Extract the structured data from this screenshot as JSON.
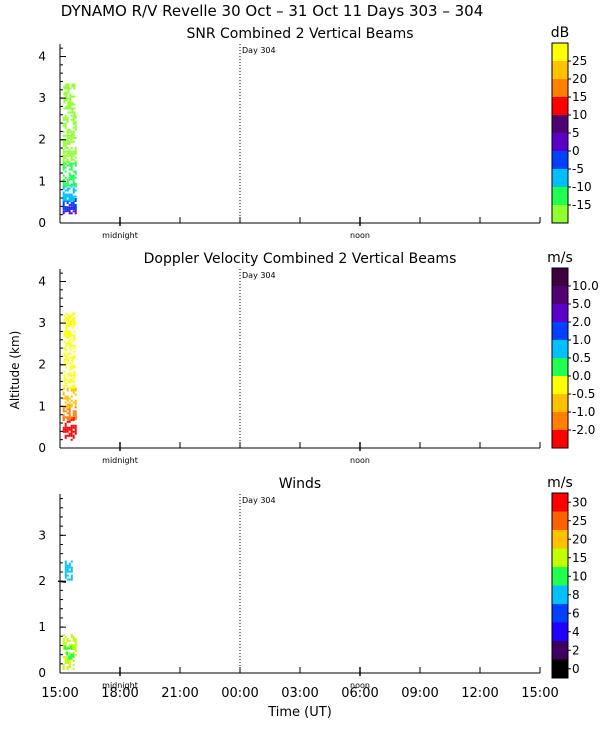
{
  "figure_title": "DYNAMO R/V Revelle  30 Oct – 31 Oct 11 Days 303 – 304",
  "shared_ylabel": "Altitude (km)",
  "shared_xlabel": "Time (UT)",
  "x_tick_labels": [
    "15:00",
    "18:00",
    "21:00",
    "00:00",
    "03:00",
    "06:00",
    "09:00",
    "12:00",
    "15:00"
  ],
  "day_marker": "Day 304",
  "time_markers": {
    "midnight": "midnight",
    "noon": "noon"
  },
  "chart_data": [
    {
      "type": "heatmap",
      "title": "SNR Combined 2 Vertical Beams",
      "xlabel": "",
      "ylabel": "",
      "x_range_hours": [
        0,
        24
      ],
      "ylim": [
        0,
        4.3
      ],
      "y_ticks": [
        "0",
        "1",
        "2",
        "3",
        "4"
      ],
      "colorbar": {
        "unit": "dB",
        "levels": [
          "25",
          "20",
          "15",
          "10",
          "5",
          "0",
          "-5",
          "-10",
          "-15"
        ],
        "colors": [
          "#ffff00",
          "#ffc000",
          "#ff8000",
          "#ff0000",
          "#500070",
          "#5a00c8",
          "#0040ff",
          "#00c0ff",
          "#20ff50",
          "#90ff30"
        ]
      },
      "echo_columns": [
        {
          "x_start": 0.05,
          "x_end": 0.95,
          "y_start": 0.25,
          "y_end": 0.4,
          "color": "#5a00c8"
        },
        {
          "x_start": 0.05,
          "x_end": 0.95,
          "y_start": 0.3,
          "y_end": 0.6,
          "color": "#0040ff"
        },
        {
          "x_start": 0.05,
          "x_end": 0.95,
          "y_start": 0.55,
          "y_end": 0.95,
          "color": "#00c0ff"
        },
        {
          "x_start": 0.05,
          "x_end": 0.95,
          "y_start": 0.9,
          "y_end": 1.5,
          "color": "#20ff50"
        },
        {
          "x_start": 0.05,
          "x_end": 0.95,
          "y_start": 1.45,
          "y_end": 2.6,
          "color": "#90ff30"
        },
        {
          "x_start": 0.1,
          "x_end": 0.9,
          "y_start": 2.6,
          "y_end": 3.35,
          "color": "#90ff30"
        }
      ]
    },
    {
      "type": "heatmap",
      "title": "Doppler Velocity Combined 2 Vertical Beams",
      "xlabel": "",
      "ylabel": "Altitude (km)",
      "x_range_hours": [
        0,
        24
      ],
      "ylim": [
        0,
        4.3
      ],
      "y_ticks": [
        "0",
        "1",
        "2",
        "3",
        "4"
      ],
      "colorbar": {
        "unit": "m/s",
        "levels": [
          "10.0",
          "5.0",
          "2.0",
          "1.0",
          "0.5",
          "0.0",
          "-0.5",
          "-1.0",
          "-2.0"
        ],
        "colors": [
          "#400040",
          "#500070",
          "#5a00c8",
          "#0040ff",
          "#00c0ff",
          "#20ff50",
          "#ffff00",
          "#ffc000",
          "#ff8000",
          "#ff0000"
        ]
      },
      "echo_columns": [
        {
          "x_start": 0.05,
          "x_end": 0.95,
          "y_start": 0.2,
          "y_end": 0.75,
          "color": "#ff0000"
        },
        {
          "x_start": 0.05,
          "x_end": 0.95,
          "y_start": 0.7,
          "y_end": 1.05,
          "color": "#ff8000"
        },
        {
          "x_start": 0.05,
          "x_end": 0.95,
          "y_start": 1.0,
          "y_end": 1.45,
          "color": "#ffc000"
        },
        {
          "x_start": 0.1,
          "x_end": 0.9,
          "y_start": 1.45,
          "y_end": 3.25,
          "color": "#ffff00"
        }
      ]
    },
    {
      "type": "heatmap",
      "title": "Winds",
      "xlabel": "Time (UT)",
      "ylabel": "",
      "x_range_hours": [
        0,
        24
      ],
      "ylim": [
        0,
        3.9
      ],
      "y_ticks": [
        "0",
        "1",
        "2",
        "3"
      ],
      "colorbar": {
        "unit": "m/s",
        "levels": [
          "30",
          "25",
          "20",
          "15",
          "10",
          "8",
          "6",
          "4",
          "2",
          "0"
        ],
        "colors": [
          "#ff0000",
          "#ff6000",
          "#ffc000",
          "#c0ff00",
          "#20ff50",
          "#00c0ff",
          "#0040ff",
          "#2000ff",
          "#400060",
          "#000000"
        ]
      },
      "echo_columns": [
        {
          "x_start": 0.05,
          "x_end": 0.95,
          "y_start": 0.1,
          "y_end": 0.85,
          "color": "#c0ff00"
        },
        {
          "x_start": 0.15,
          "x_end": 0.85,
          "y_start": 0.3,
          "y_end": 0.6,
          "color": "#20ff50"
        },
        {
          "x_start": 0.2,
          "x_end": 0.7,
          "y_start": 2.05,
          "y_end": 2.45,
          "color": "#00c0ff"
        }
      ]
    }
  ]
}
